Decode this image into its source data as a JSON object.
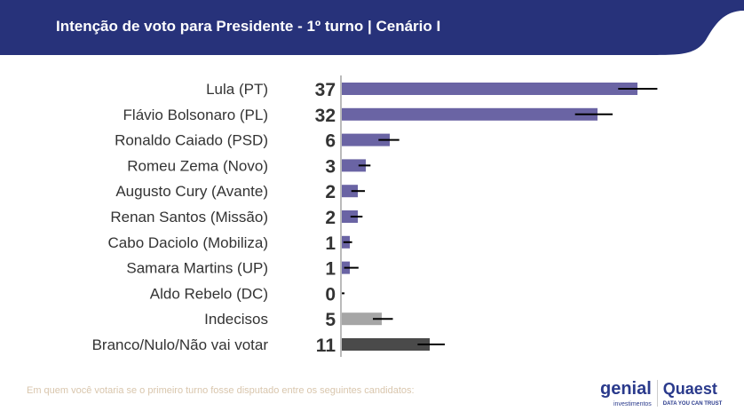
{
  "header": {
    "title": "Intenção de voto para Presidente - 1º turno | Cenário I",
    "color": "#27327a"
  },
  "footer": {
    "question": "Em quem você votaria se o primeiro turno fosse disputado entre os seguintes candidatos:"
  },
  "logos": {
    "genial": "genial",
    "genial_sub": "investimentos",
    "quaest": "Quaest",
    "quaest_sub": "DATA YOU CAN TRUST"
  },
  "chart_data": {
    "type": "bar",
    "orientation": "horizontal",
    "grid": false,
    "xlim": [
      0,
      40
    ],
    "categories": [
      "Lula (PT)",
      "Flávio Bolsonaro (PL)",
      "Ronaldo Caiado (PSD)",
      "Romeu Zema (Novo)",
      "Augusto Cury (Avante)",
      "Renan Santos (Missão)",
      "Cabo Daciolo (Mobiliza)",
      "Samara Martins (UP)",
      "Aldo Rebelo (DC)",
      "Indecisos",
      "Branco/Nulo/Não vai votar"
    ],
    "values": [
      37,
      32,
      6,
      3,
      2,
      2,
      1,
      1,
      0,
      5,
      11
    ],
    "error_low": [
      34.7,
      29.3,
      4.7,
      2.2,
      1.3,
      1.2,
      0.3,
      0.4,
      0,
      4.0,
      9.6
    ],
    "error_high": [
      39.6,
      34.0,
      7.3,
      3.7,
      3.0,
      2.7,
      1.4,
      2.2,
      0,
      6.5,
      13.0
    ],
    "colors": [
      "#6a64a4",
      "#6a64a4",
      "#6a64a4",
      "#6a64a4",
      "#6a64a4",
      "#6a64a4",
      "#6a64a4",
      "#6a64a4",
      "#6a64a4",
      "#a6a6a6",
      "#4a4a4a"
    ]
  }
}
